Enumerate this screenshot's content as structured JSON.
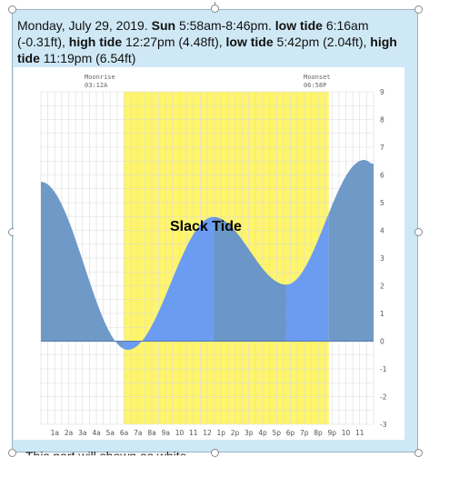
{
  "caption": {
    "date": "Monday, July 29, 2019.",
    "sun_label": "Sun",
    "sun_times": "5:58am-8:46pm.",
    "low1_label": "low tide",
    "low1_value": "6:16am",
    "low1_height": "(-0.31ft),",
    "high1_label": "high tide",
    "high1_value": "12:27pm (4.48ft),",
    "low2_label": "low tide",
    "low2_value": "5:42pm (2.04ft),",
    "high2_label": "high tide",
    "high2_value": "11:19pm (6.54ft)"
  },
  "footer_text": "This part will shown as white",
  "annotation": "Slack Tide",
  "moonrise": {
    "label": "Moonrise",
    "time": "03:12A"
  },
  "moonset": {
    "label": "Moonset",
    "time": "06:58P"
  },
  "colors": {
    "frame": "#cfe8f5",
    "daylight": "#fef56b",
    "tide_day": "#6b9cf2",
    "tide_night": "#6f9ac8",
    "tide_highlight": "#6a96c8"
  },
  "chart_data": {
    "type": "area",
    "x_tick_labels": [
      "1a",
      "2a",
      "3a",
      "4a",
      "5a",
      "6a",
      "7a",
      "8a",
      "9a",
      "10",
      "11",
      "12",
      "1p",
      "2p",
      "3p",
      "4p",
      "5p",
      "6p",
      "7p",
      "8p",
      "9p",
      "10",
      "11"
    ],
    "y_tick_labels": [
      "9",
      "8",
      "7",
      "6",
      "5",
      "4",
      "3",
      "2",
      "1",
      "0",
      "-1",
      "-2",
      "-3"
    ],
    "ylim": [
      -3,
      9
    ],
    "xlim_hours": [
      0,
      24
    ],
    "extremes": [
      {
        "hour": 6.27,
        "height": -0.31
      },
      {
        "hour": 12.45,
        "height": 4.48
      },
      {
        "hour": 17.7,
        "height": 2.04
      },
      {
        "hour": 23.32,
        "height": 6.54
      }
    ],
    "start_height": 5.75,
    "end_height": 6.4,
    "daylight_hours": [
      5.97,
      20.77
    ],
    "highlight_hours": [
      12.45,
      17.7
    ],
    "grid": true
  }
}
